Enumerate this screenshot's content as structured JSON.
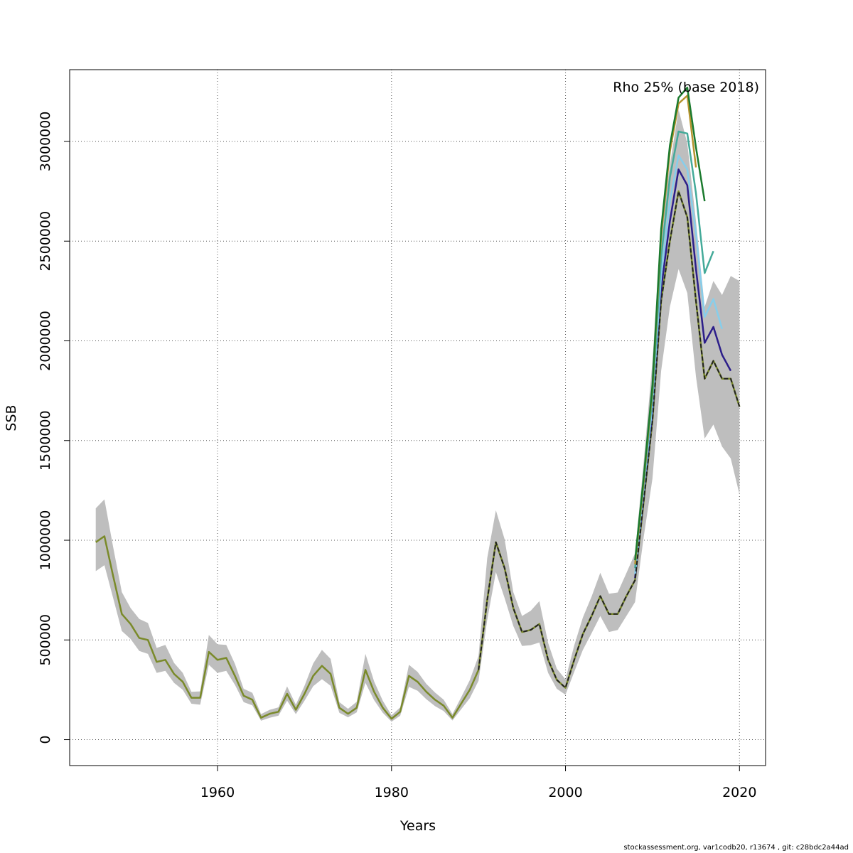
{
  "chart_data": {
    "type": "line",
    "xlabel": "Years",
    "ylabel": "SSB",
    "annotation": "Rho 25% (base 2018)",
    "xlim": [
      1943,
      2023
    ],
    "ylim": [
      -130000,
      3360000
    ],
    "x_ticks": [
      1960,
      1980,
      2000,
      2020
    ],
    "y_ticks": [
      0,
      500000,
      1000000,
      1500000,
      2000000,
      2500000,
      3000000
    ],
    "grid": true,
    "base": {
      "name": "",
      "x": [
        1946,
        1947,
        1948,
        1949,
        1950,
        1951,
        1952,
        1953,
        1954,
        1955,
        1956,
        1957,
        1958,
        1959,
        1960,
        1961,
        1962,
        1963,
        1964,
        1965,
        1966,
        1967,
        1968,
        1969,
        1970,
        1971,
        1972,
        1973,
        1974,
        1975,
        1976,
        1977,
        1978,
        1979,
        1980,
        1981,
        1982,
        1983,
        1984,
        1985,
        1986,
        1987,
        1988,
        1989,
        1990,
        1991,
        1992,
        1993,
        1994,
        1995,
        1996,
        1997,
        1998,
        1999,
        2000,
        2001,
        2002,
        2003,
        2004,
        2005,
        2006,
        2007,
        2008,
        2009,
        2010,
        2011,
        2012,
        2013,
        2014,
        2015,
        2016,
        2017,
        2018,
        2019,
        2020
      ],
      "y": [
        990000,
        1020000,
        820000,
        630000,
        580000,
        510000,
        500000,
        390000,
        400000,
        330000,
        290000,
        210000,
        210000,
        440000,
        400000,
        410000,
        320000,
        220000,
        200000,
        110000,
        130000,
        140000,
        230000,
        150000,
        230000,
        320000,
        370000,
        330000,
        160000,
        130000,
        160000,
        350000,
        240000,
        160000,
        105000,
        140000,
        320000,
        290000,
        240000,
        200000,
        170000,
        110000,
        180000,
        250000,
        350000,
        700000,
        990000,
        860000,
        660000,
        540000,
        550000,
        580000,
        400000,
        300000,
        260000,
        400000,
        530000,
        620000,
        720000,
        630000,
        630000,
        720000,
        800000,
        1200000,
        1600000,
        2200000,
        2500000,
        2750000,
        2620000,
        2200000,
        1810000,
        1900000,
        1810000,
        1810000,
        1670000
      ],
      "ci_low": [
        845000,
        875000,
        710000,
        545000,
        505000,
        445000,
        430000,
        335000,
        345000,
        285000,
        250000,
        180000,
        175000,
        375000,
        335000,
        345000,
        275000,
        188000,
        172000,
        95000,
        110000,
        120000,
        195000,
        128000,
        195000,
        268000,
        303000,
        270000,
        135000,
        112000,
        137000,
        285000,
        198000,
        135000,
        90000,
        120000,
        265000,
        245000,
        203000,
        168000,
        143000,
        96000,
        152000,
        208000,
        295000,
        600000,
        840000,
        710000,
        570000,
        470000,
        474000,
        487000,
        335000,
        255000,
        225000,
        340000,
        450000,
        534000,
        620000,
        540000,
        550000,
        620000,
        690000,
        1020000,
        1310000,
        1850000,
        2170000,
        2360000,
        2240000,
        1820000,
        1510000,
        1580000,
        1470000,
        1410000,
        1230000
      ],
      "ci_high": [
        1160000,
        1205000,
        965000,
        740000,
        660000,
        605000,
        585000,
        460000,
        475000,
        385000,
        335000,
        240000,
        242000,
        525000,
        478000,
        475000,
        380000,
        255000,
        235000,
        128000,
        150000,
        162000,
        267000,
        175000,
        270000,
        382000,
        450000,
        405000,
        188000,
        155000,
        190000,
        430000,
        292000,
        195000,
        122000,
        162000,
        375000,
        340000,
        280000,
        236000,
        200000,
        128000,
        212000,
        298000,
        420000,
        910000,
        1150000,
        1005000,
        740000,
        620000,
        646000,
        695000,
        485000,
        356000,
        302000,
        472000,
        613000,
        718000,
        837000,
        732000,
        738000,
        835000,
        935000,
        1400000,
        1900000,
        2580000,
        2880000,
        3160000,
        2990000,
        2600000,
        2170000,
        2300000,
        2230000,
        2325000,
        2300000
      ]
    },
    "series": [
      {
        "color": "#2c1e8a",
        "x": [
          2008,
          2009,
          2010,
          2011,
          2012,
          2013,
          2014,
          2015,
          2016,
          2017,
          2018,
          2019
        ],
        "y": [
          810000,
          1230000,
          1640000,
          2260000,
          2600000,
          2860000,
          2780000,
          2360000,
          1990000,
          2070000,
          1930000,
          1850000
        ]
      },
      {
        "color": "#87ceeb",
        "x": [
          2008,
          2009,
          2010,
          2011,
          2012,
          2013,
          2014,
          2015,
          2016,
          2017,
          2018
        ],
        "y": [
          830000,
          1260000,
          1680000,
          2330000,
          2700000,
          2930000,
          2860000,
          2540000,
          2120000,
          2210000,
          2060000
        ]
      },
      {
        "color": "#44aa99",
        "x": [
          2008,
          2009,
          2010,
          2011,
          2012,
          2013,
          2014,
          2015,
          2016,
          2017
        ],
        "y": [
          860000,
          1290000,
          1720000,
          2420000,
          2820000,
          3050000,
          3040000,
          2740000,
          2340000,
          2450000
        ]
      },
      {
        "color": "#b5932e",
        "x": [
          2008,
          2009,
          2010,
          2011,
          2012,
          2013,
          2014,
          2015
        ],
        "y": [
          880000,
          1300000,
          1760000,
          2530000,
          2950000,
          3190000,
          3230000,
          2870000
        ]
      },
      {
        "color": "#1b7a2e",
        "x": [
          2008,
          2009,
          2010,
          2011,
          2012,
          2013,
          2014,
          2015,
          2016
        ],
        "y": [
          900000,
          1320000,
          1780000,
          2560000,
          2980000,
          3220000,
          3270000,
          2970000,
          2700000
        ]
      }
    ]
  },
  "footer": "stockassessment.org, var1codb20, r13674 , git: c28bdc2a44ad"
}
